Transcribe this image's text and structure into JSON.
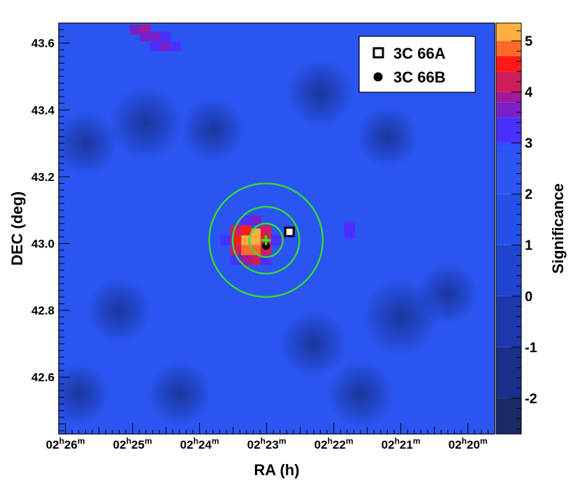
{
  "chart_data": {
    "type": "heatmap",
    "title": "",
    "xlabel": "RA (h)",
    "ylabel": "DEC (deg)",
    "colorbar_label": "Significance",
    "xlim_minutes": [
      26.1,
      19.6
    ],
    "ylim": [
      42.43,
      43.66
    ],
    "x_axis_reversed": true,
    "x_ticks": [
      {
        "value": 26,
        "hours": "02",
        "minutes": "26"
      },
      {
        "value": 25,
        "hours": "02",
        "minutes": "25"
      },
      {
        "value": 24,
        "hours": "02",
        "minutes": "24"
      },
      {
        "value": 23,
        "hours": "02",
        "minutes": "23"
      },
      {
        "value": 22,
        "hours": "02",
        "minutes": "22"
      },
      {
        "value": 21,
        "hours": "02",
        "minutes": "21"
      },
      {
        "value": 20,
        "hours": "02",
        "minutes": "20"
      }
    ],
    "hour_suffix": "h",
    "minute_suffix": "m",
    "y_ticks": [
      {
        "value": 42.6,
        "label": "42.6"
      },
      {
        "value": 42.8,
        "label": "42.8"
      },
      {
        "value": 43.0,
        "label": "43.0"
      },
      {
        "value": 43.2,
        "label": "43.2"
      },
      {
        "value": 43.4,
        "label": "43.4"
      },
      {
        "value": 43.6,
        "label": "43.6"
      }
    ],
    "colorbar": {
      "range": [
        -2.7,
        5.35
      ],
      "ticks": [
        {
          "value": -2,
          "label": "-2"
        },
        {
          "value": -1,
          "label": "-1"
        },
        {
          "value": 0,
          "label": "0"
        },
        {
          "value": 1,
          "label": "1"
        },
        {
          "value": 2,
          "label": "2"
        },
        {
          "value": 3,
          "label": "3"
        },
        {
          "value": 4,
          "label": "4"
        },
        {
          "value": 5,
          "label": "5"
        }
      ],
      "color_stops": [
        {
          "value": -2.7,
          "color": "#1a2a66"
        },
        {
          "value": -2.0,
          "color": "#1a2f8a"
        },
        {
          "value": -1.0,
          "color": "#1d38ad"
        },
        {
          "value": 0.0,
          "color": "#1f44cf"
        },
        {
          "value": 1.0,
          "color": "#2250e8"
        },
        {
          "value": 2.0,
          "color": "#2a55f2"
        },
        {
          "value": 2.9,
          "color": "#2b50ff"
        },
        {
          "value": 3.0,
          "color": "#4a30ff"
        },
        {
          "value": 3.5,
          "color": "#7a20c8"
        },
        {
          "value": 3.8,
          "color": "#a01a9a"
        },
        {
          "value": 4.0,
          "color": "#d01c5a"
        },
        {
          "value": 4.4,
          "color": "#ff1a1a"
        },
        {
          "value": 4.7,
          "color": "#ff6a2a"
        },
        {
          "value": 5.0,
          "color": "#ffb040"
        },
        {
          "value": 5.35,
          "color": "#f8f840"
        }
      ]
    },
    "background_level": 2.2,
    "hot_pixels": [
      {
        "ra": 23.16,
        "dec": 43.01,
        "sig": 5.3
      },
      {
        "ra": 23.16,
        "dec": 43.03,
        "sig": 5.1
      },
      {
        "ra": 23.31,
        "dec": 43.01,
        "sig": 5.2
      },
      {
        "ra": 23.31,
        "dec": 42.98,
        "sig": 4.9
      },
      {
        "ra": 23.46,
        "dec": 43.01,
        "sig": 4.6
      },
      {
        "ra": 23.01,
        "dec": 43.01,
        "sig": 4.6
      },
      {
        "ra": 23.16,
        "dec": 42.98,
        "sig": 4.8
      },
      {
        "ra": 23.31,
        "dec": 43.04,
        "sig": 4.4
      },
      {
        "ra": 23.46,
        "dec": 43.04,
        "sig": 4.1
      },
      {
        "ra": 23.46,
        "dec": 42.98,
        "sig": 4.1
      },
      {
        "ra": 23.01,
        "dec": 42.98,
        "sig": 4.1
      },
      {
        "ra": 23.01,
        "dec": 43.04,
        "sig": 4.0
      },
      {
        "ra": 23.16,
        "dec": 42.95,
        "sig": 4.0
      },
      {
        "ra": 23.31,
        "dec": 42.95,
        "sig": 3.9
      },
      {
        "ra": 23.61,
        "dec": 43.01,
        "sig": 3.4
      },
      {
        "ra": 22.86,
        "dec": 43.01,
        "sig": 3.3
      },
      {
        "ra": 23.16,
        "dec": 43.07,
        "sig": 3.5
      },
      {
        "ra": 23.31,
        "dec": 43.07,
        "sig": 3.4
      },
      {
        "ra": 23.01,
        "dec": 42.95,
        "sig": 3.3
      },
      {
        "ra": 23.46,
        "dec": 42.95,
        "sig": 3.2
      },
      {
        "ra": 21.76,
        "dec": 43.05,
        "sig": 3.2
      },
      {
        "ra": 21.76,
        "dec": 43.03,
        "sig": 3.2
      },
      {
        "ra": 24.96,
        "dec": 43.64,
        "sig": 3.6
      },
      {
        "ra": 24.81,
        "dec": 43.64,
        "sig": 3.8
      },
      {
        "ra": 24.81,
        "dec": 43.62,
        "sig": 3.5
      },
      {
        "ra": 24.66,
        "dec": 43.62,
        "sig": 3.7
      },
      {
        "ra": 24.66,
        "dec": 43.59,
        "sig": 3.4
      },
      {
        "ra": 24.51,
        "dec": 43.59,
        "sig": 3.5
      },
      {
        "ra": 24.36,
        "dec": 43.59,
        "sig": 3.2
      },
      {
        "ra": 24.51,
        "dec": 43.62,
        "sig": 3.2
      }
    ],
    "cold_spots": [
      {
        "ra": 24.8,
        "dec": 43.36,
        "sig": 0.6
      },
      {
        "ra": 23.8,
        "dec": 43.34,
        "sig": 0.9
      },
      {
        "ra": 22.2,
        "dec": 43.45,
        "sig": 0.8
      },
      {
        "ra": 21.2,
        "dec": 43.32,
        "sig": 1.0
      },
      {
        "ra": 25.7,
        "dec": 43.3,
        "sig": 0.9
      },
      {
        "ra": 25.2,
        "dec": 42.8,
        "sig": 0.9
      },
      {
        "ra": 21.0,
        "dec": 42.78,
        "sig": 0.5
      },
      {
        "ra": 22.3,
        "dec": 42.7,
        "sig": 0.8
      },
      {
        "ra": 24.3,
        "dec": 42.55,
        "sig": 0.9
      },
      {
        "ra": 20.3,
        "dec": 42.85,
        "sig": 1.0
      },
      {
        "ra": 21.6,
        "dec": 42.55,
        "sig": 0.8
      },
      {
        "ra": 25.8,
        "dec": 42.55,
        "sig": 1.0
      }
    ],
    "sources": [
      {
        "name": "3C 66A",
        "ra": 22.66,
        "dec": 43.035,
        "marker": "open-square",
        "color": "#000000"
      },
      {
        "name": "3C 66B",
        "ra": 23.01,
        "dec": 42.993,
        "marker": "filled-circle",
        "color": "#000000"
      }
    ],
    "best_fit_position": {
      "ra": 23.01,
      "dec": 43.01,
      "marker": "cross",
      "color": "#33dd33"
    },
    "confidence_contours": {
      "center": {
        "ra": 23.01,
        "dec": 43.01
      },
      "radii_deg": [
        0.05,
        0.1,
        0.17
      ],
      "color": "#33dd33"
    },
    "legend": {
      "placement": "top-right",
      "entries": [
        {
          "label": "3C 66A",
          "marker": "open-square"
        },
        {
          "label": "3C 66B",
          "marker": "filled-circle"
        }
      ]
    },
    "grid": false
  }
}
